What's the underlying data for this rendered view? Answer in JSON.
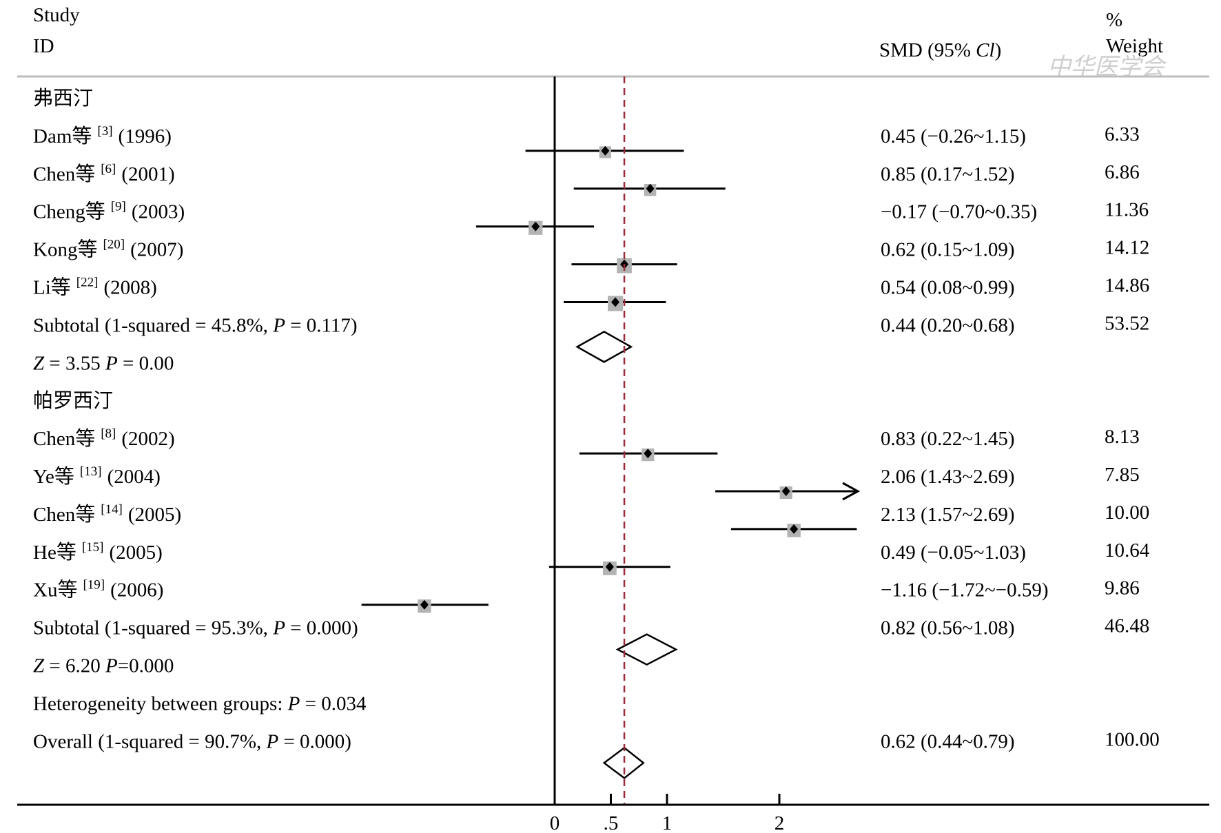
{
  "header": {
    "study_label": "Study",
    "id_label": "ID",
    "effect_label_prefix": "SMD (95% ",
    "effect_label_italic": "Cl",
    "effect_label_suffix": ")",
    "weight_label_top": "%",
    "weight_label": "Weight"
  },
  "watermark": {
    "text": "中华医学会"
  },
  "colors": {
    "reference_line": "#9b2b3a",
    "marker_box": "#b3b3b3",
    "ink": "#000000"
  },
  "chart_data": {
    "type": "forest",
    "x_ticks": [
      {
        "value": 0,
        "label": "0"
      },
      {
        "value": 0.5,
        "label": ".5"
      },
      {
        "value": 1,
        "label": "1"
      },
      {
        "value": 2,
        "label": "2"
      }
    ],
    "null_line": 0,
    "overall_line": 0.62,
    "rows": [
      {
        "kind": "group",
        "label": "弗西汀"
      },
      {
        "kind": "study",
        "author": "Dam等",
        "ref": "[3]",
        "year": "(1996)",
        "est": 0.45,
        "lo": -0.26,
        "hi": 1.15,
        "ci_text": "0.45 (−0.26~1.15)",
        "weight": "6.33",
        "weight_value": 6.33
      },
      {
        "kind": "study",
        "author": "Chen等",
        "ref": "[6]",
        "year": "(2001)",
        "est": 0.85,
        "lo": 0.17,
        "hi": 1.52,
        "ci_text": "0.85 (0.17~1.52)",
        "weight": "6.86",
        "weight_value": 6.86
      },
      {
        "kind": "study",
        "author": "Cheng等",
        "ref": "[9]",
        "year": "(2003)",
        "est": -0.17,
        "lo": -0.7,
        "hi": 0.35,
        "ci_text": "−0.17 (−0.70~0.35)",
        "weight": "11.36",
        "weight_value": 11.36
      },
      {
        "kind": "study",
        "author": "Kong等",
        "ref": "[20]",
        "year": "(2007)",
        "est": 0.62,
        "lo": 0.15,
        "hi": 1.09,
        "ci_text": "0.62 (0.15~1.09)",
        "weight": "14.12",
        "weight_value": 14.12
      },
      {
        "kind": "study",
        "author": "Li等",
        "ref": "[22]",
        "year": "(2008)",
        "est": 0.54,
        "lo": 0.08,
        "hi": 0.99,
        "ci_text": "0.54 (0.08~0.99)",
        "weight": "14.86",
        "weight_value": 14.86
      },
      {
        "kind": "subtotal",
        "parts": [
          {
            "t": "Subtotal (1-squared = 45.8%, "
          },
          {
            "t": "P",
            "i": true
          },
          {
            "t": " = 0.117)"
          }
        ],
        "est": 0.44,
        "lo": 0.2,
        "hi": 0.68,
        "ci_text": "0.44 (0.20~0.68)",
        "weight": "53.52"
      },
      {
        "kind": "note",
        "parts": [
          {
            "t": "Z",
            "i": true
          },
          {
            "t": " = 3.55  "
          },
          {
            "t": "P",
            "i": true
          },
          {
            "t": " = 0.00"
          }
        ]
      },
      {
        "kind": "group",
        "label": "帕罗西汀"
      },
      {
        "kind": "study",
        "author": "Chen等",
        "ref": "[8]",
        "year": "(2002)",
        "est": 0.83,
        "lo": 0.22,
        "hi": 1.45,
        "ci_text": "0.83 (0.22~1.45)",
        "weight": "8.13",
        "weight_value": 8.13
      },
      {
        "kind": "study",
        "author": "Ye等",
        "ref": "[13]",
        "year": "(2004)",
        "est": 2.06,
        "lo": 1.43,
        "hi": 2.69,
        "ci_text": "2.06 (1.43~2.69)",
        "weight": "7.85",
        "weight_value": 7.85,
        "arrow": true
      },
      {
        "kind": "study",
        "author": "Chen等",
        "ref": "[14]",
        "year": "(2005)",
        "est": 2.13,
        "lo": 1.57,
        "hi": 2.69,
        "ci_text": "2.13 (1.57~2.69)",
        "weight": "10.00",
        "weight_value": 10.0
      },
      {
        "kind": "study",
        "author": "He等",
        "ref": "[15]",
        "year": "(2005)",
        "est": 0.49,
        "lo": -0.05,
        "hi": 1.03,
        "ci_text": "0.49 (−0.05~1.03)",
        "weight": "10.64",
        "weight_value": 10.64
      },
      {
        "kind": "study",
        "author": "Xu等",
        "ref": "[19]",
        "year": "(2006)",
        "est": -1.16,
        "lo": -1.72,
        "hi": -0.59,
        "ci_text": "−1.16 (−1.72~−0.59)",
        "weight": "9.86",
        "weight_value": 9.86
      },
      {
        "kind": "subtotal",
        "parts": [
          {
            "t": "Subtotal (1-squared = 95.3%, "
          },
          {
            "t": "P",
            "i": true
          },
          {
            "t": " = 0.000)"
          }
        ],
        "est": 0.82,
        "lo": 0.56,
        "hi": 1.08,
        "ci_text": "0.82 (0.56~1.08)",
        "weight": "46.48"
      },
      {
        "kind": "note",
        "parts": [
          {
            "t": "Z",
            "i": true
          },
          {
            "t": " = 6.20 "
          },
          {
            "t": "P",
            "i": true
          },
          {
            "t": "=0.000"
          }
        ]
      },
      {
        "kind": "note",
        "parts": [
          {
            "t": "Heterogeneity between groups: "
          },
          {
            "t": "P",
            "i": true
          },
          {
            "t": " = 0.034"
          }
        ]
      },
      {
        "kind": "overall",
        "parts": [
          {
            "t": "Overall (1-squared = 90.7%, "
          },
          {
            "t": "P",
            "i": true
          },
          {
            "t": " = 0.000)"
          }
        ],
        "est": 0.62,
        "lo": 0.44,
        "hi": 0.79,
        "ci_text": "0.62 (0.44~0.79)",
        "weight": "100.00"
      }
    ]
  }
}
